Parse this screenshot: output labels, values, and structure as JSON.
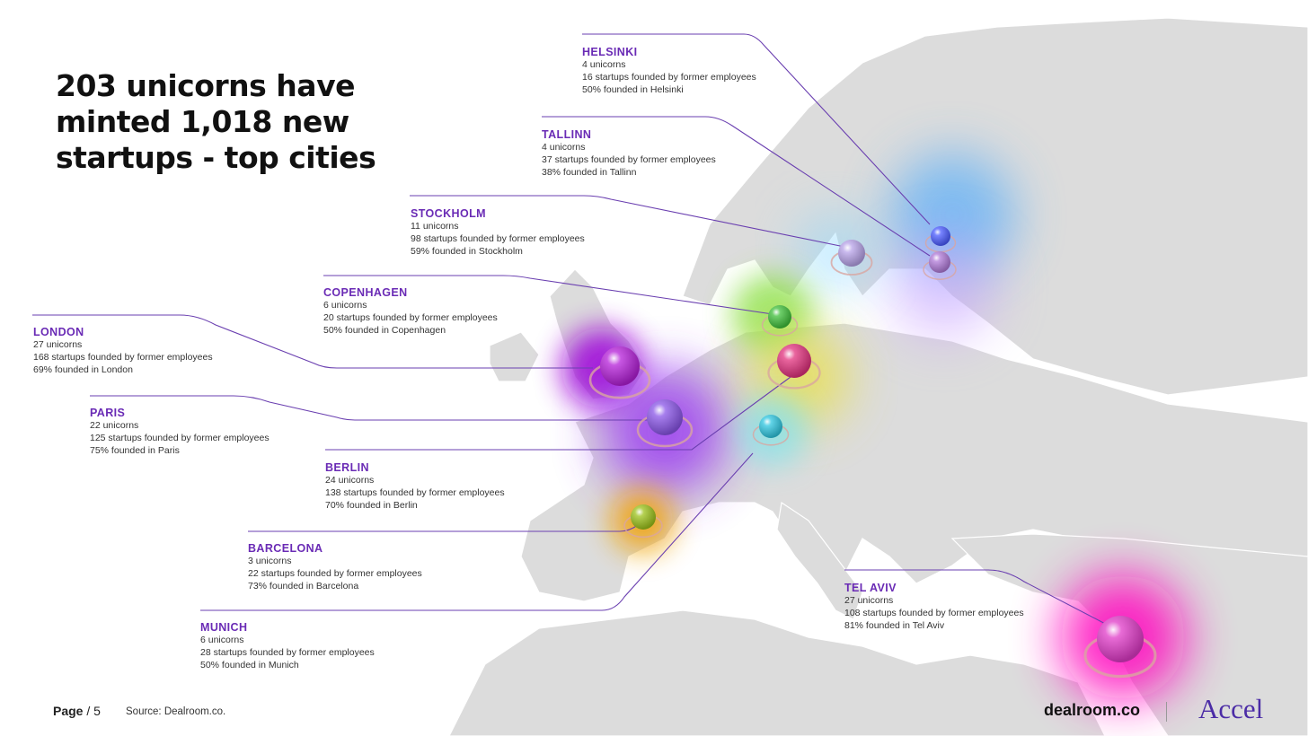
{
  "title": "203 unicorns have minted 1,018 new startups - top cities",
  "cities": [
    {
      "id": "helsinki",
      "name": "HELSINKI",
      "unicorns": "4 unicorns",
      "startups": "16 startups founded by former employees",
      "founded": "50% founded in Helsinki",
      "color": "#4a5bff",
      "glow": "#3fa6ff"
    },
    {
      "id": "tallinn",
      "name": "TALLINN",
      "unicorns": "4 unicorns",
      "startups": "37 startups founded by former employees",
      "founded": "38% founded in Tallinn",
      "color": "#b07ad8",
      "glow": "#c79bff"
    },
    {
      "id": "stockholm",
      "name": "STOCKHOLM",
      "unicorns": "11 unicorns",
      "startups": "98 startups founded by former employees",
      "founded": "59% founded in Stockholm",
      "color": "#b7a2e8",
      "glow": "#86d7ff"
    },
    {
      "id": "copenhagen",
      "name": "COPENHAGEN",
      "unicorns": "6 unicorns",
      "startups": "20 startups founded by former employees",
      "founded": "50% founded in Copenhagen",
      "color": "#3fbf3a",
      "glow": "#8be04a"
    },
    {
      "id": "london",
      "name": "LONDON",
      "unicorns": "27 unicorns",
      "startups": "168 startups founded by former employees",
      "founded": "69% founded in London",
      "color": "#b51fd9",
      "glow": "#a010d8"
    },
    {
      "id": "paris",
      "name": "PARIS",
      "unicorns": "22 unicorns",
      "startups": "125 startups founded by former employees",
      "founded": "75% founded in Paris",
      "color": "#8a55e8",
      "glow": "#9b3cf0"
    },
    {
      "id": "berlin",
      "name": "BERLIN",
      "unicorns": "24 unicorns",
      "startups": "138 startups founded by former employees",
      "founded": "70% founded in Berlin",
      "color": "#e2327e",
      "glow": "#e8e050"
    },
    {
      "id": "barcelona",
      "name": "BARCELONA",
      "unicorns": "3 unicorns",
      "startups": "22 startups founded by former employees",
      "founded": "73% founded in Barcelona",
      "color": "#9cc21a",
      "glow": "#f0a40e"
    },
    {
      "id": "munich",
      "name": "MUNICH",
      "unicorns": "6 unicorns",
      "startups": "28 startups founded by former employees",
      "founded": "50% founded in Munich",
      "color": "#2ec6e0",
      "glow": "#7fe3ee"
    },
    {
      "id": "telaviv",
      "name": "TEL AVIV",
      "unicorns": "27 unicorns",
      "startups": "108 startups founded by former employees",
      "founded": "81% founded in Tel Aviv",
      "color": "#e03ac8",
      "glow": "#ff10c0"
    }
  ],
  "footer": {
    "page_label": "Page",
    "page_sep": "/",
    "page_number": "5",
    "source": "Source: Dealroom.co.",
    "brand_primary": "dealroom.co",
    "brand_secondary": "Accel"
  },
  "colors": {
    "accent": "#6a2bb5",
    "land": "#dcdcdc",
    "sea": "#ffffff",
    "leader": "#6a3fb0"
  }
}
